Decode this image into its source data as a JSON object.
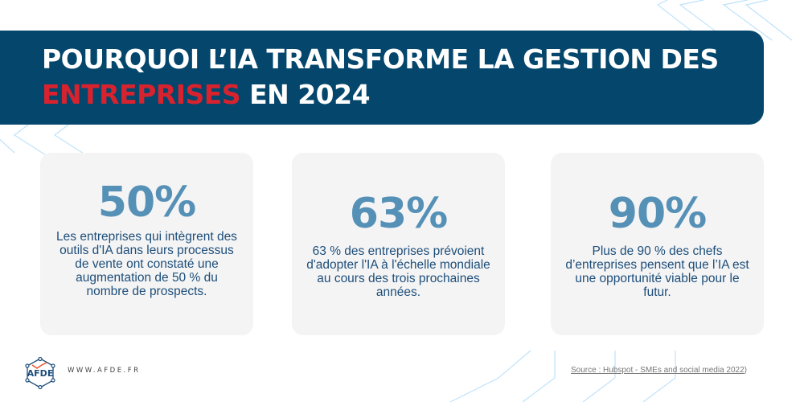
{
  "header": {
    "title_line1": "POURQUOI L’IA TRANSFORME LA GESTION DES",
    "title_highlight": "ENTREPRISES",
    "title_line2_rest": " EN 2024"
  },
  "stats": [
    {
      "value": "50%",
      "text": "Les entreprises qui intègrent des outils d'IA dans leurs processus de vente ont constaté une augmentation de 50 % du nombre de prospects."
    },
    {
      "value": "63%",
      "text": "63 % des entreprises prévoient d'adopter l'IA à l'échelle mondiale au cours des trois prochaines années."
    },
    {
      "value": "90%",
      "text": "Plus de 90 % des chefs d’entreprises pensent que l’IA est une opportunité viable pour le futur."
    }
  ],
  "footer": {
    "logo_text": "AFDE",
    "website": "WWW.AFDE.FR",
    "source": "Source : Hubspot - SMEs and social media 2022",
    "source_suffix": ")"
  },
  "colors": {
    "banner": "#04466c",
    "highlight": "#d8232f",
    "stat_number": "#5590b6",
    "stat_text": "#1d4e7a",
    "card_bg": "#f4f4f4",
    "decoration": "#bfe3fb"
  }
}
